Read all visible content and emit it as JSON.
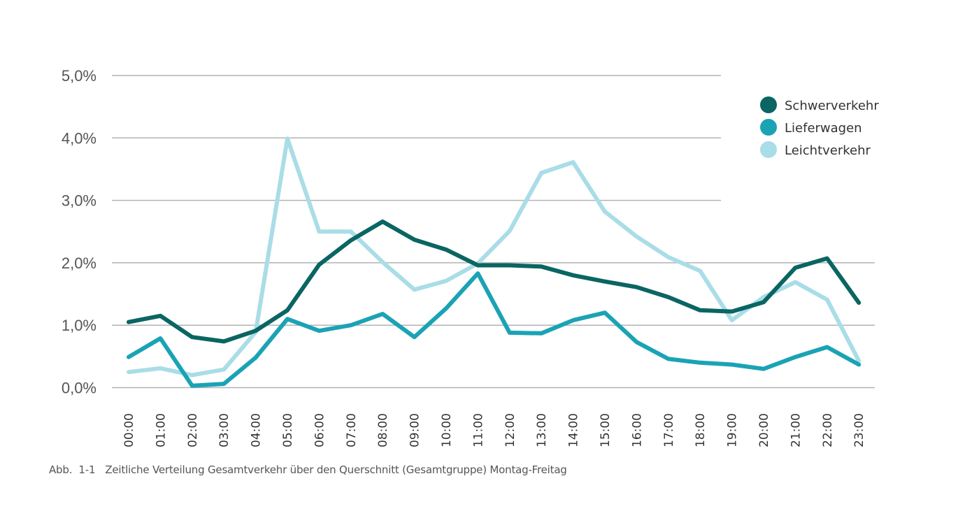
{
  "chart_data": {
    "type": "line",
    "title": "",
    "xlabel": "",
    "ylabel": "",
    "ylim": [
      0,
      5
    ],
    "yticks": [
      0,
      1,
      2,
      3,
      4,
      5
    ],
    "ytick_labels": [
      "0,0%",
      "1,0%",
      "2,0%",
      "3,0%",
      "4,0%",
      "5,0%"
    ],
    "grid": true,
    "legend_position": "top-right",
    "x": [
      "00:00",
      "01:00",
      "02:00",
      "03:00",
      "04:00",
      "05:00",
      "06:00",
      "07:00",
      "08:00",
      "09:00",
      "10:00",
      "11:00",
      "12:00",
      "13:00",
      "14:00",
      "15:00",
      "16:00",
      "17:00",
      "18:00",
      "19:00",
      "20:00",
      "21:00",
      "22:00",
      "23:00"
    ],
    "series": [
      {
        "name": "Schwerverkehr",
        "color": "#0a6563",
        "values": [
          1.05,
          1.15,
          0.81,
          0.74,
          0.91,
          1.24,
          1.97,
          2.36,
          2.66,
          2.37,
          2.21,
          1.96,
          1.96,
          1.94,
          1.8,
          1.7,
          1.61,
          1.45,
          1.24,
          1.22,
          1.37,
          1.92,
          2.07,
          1.36
        ]
      },
      {
        "name": "Lieferwagen",
        "color": "#1aa3b5",
        "values": [
          0.49,
          0.79,
          0.03,
          0.06,
          0.48,
          1.1,
          0.91,
          1.0,
          1.18,
          0.81,
          1.27,
          1.83,
          0.88,
          0.87,
          1.08,
          1.2,
          0.73,
          0.46,
          0.4,
          0.37,
          0.3,
          0.49,
          0.65,
          0.37
        ]
      },
      {
        "name": "Leichtverkehr",
        "color": "#a9dde7",
        "values": [
          0.25,
          0.31,
          0.2,
          0.29,
          0.89,
          3.99,
          2.5,
          2.5,
          2.01,
          1.57,
          1.71,
          1.99,
          2.51,
          3.44,
          3.61,
          2.82,
          2.42,
          2.09,
          1.87,
          1.08,
          1.45,
          1.69,
          1.41,
          0.43
        ]
      }
    ]
  },
  "caption": {
    "number": "Abb.  1-1",
    "text": "Zeitliche Verteilung Gesamtverkehr über den Querschnitt (Gesamtgruppe) Montag-Freitag"
  }
}
